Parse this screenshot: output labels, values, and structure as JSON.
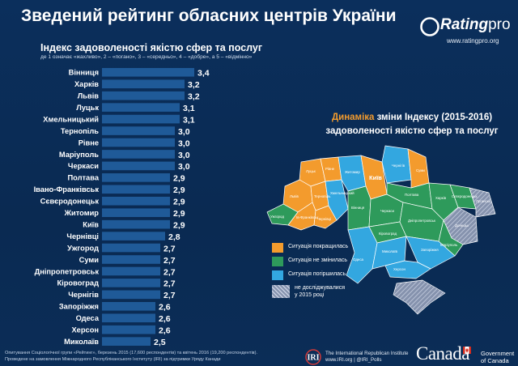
{
  "header": {
    "title": "Зведений рейтинг обласних центрів України"
  },
  "brand": {
    "name_main": "Rating",
    "name_suffix": "pro",
    "url": "www.ratingpro.org"
  },
  "chart_data": {
    "type": "bar",
    "orientation": "horizontal",
    "title": "Індекс задоволеності якістю сфер та послуг",
    "subtitle": "де 1 означає «жахливо», 2 – «погано», 3 – «середньо», 4 – «добре», а 5 – «відмінно»",
    "categories": [
      "Вінниця",
      "Харків",
      "Львів",
      "Луцьк",
      "Хмельницький",
      "Тернопіль",
      "Рівне",
      "Маріуполь",
      "Черкаси",
      "Полтава",
      "Івано-Франківськ",
      "Сєвєродонецьк",
      "Житомир",
      "Київ",
      "Чернівці",
      "Ужгород",
      "Суми",
      "Дніпропетровськ",
      "Кіровоград",
      "Чернігів",
      "Запоріжжя",
      "Одеса",
      "Херсон",
      "Миколаїв"
    ],
    "values": [
      3.4,
      3.2,
      3.2,
      3.1,
      3.1,
      3.0,
      3.0,
      3.0,
      3.0,
      2.9,
      2.9,
      2.9,
      2.9,
      2.9,
      2.8,
      2.7,
      2.7,
      2.7,
      2.7,
      2.7,
      2.6,
      2.6,
      2.6,
      2.5
    ],
    "value_labels": [
      "3,4",
      "3,2",
      "3,2",
      "3,1",
      "3,1",
      "3,0",
      "3,0",
      "3,0",
      "3,0",
      "2,9",
      "2,9",
      "2,9",
      "2,9",
      "2,9",
      "2,8",
      "2,7",
      "2,7",
      "2,7",
      "2,7",
      "2,7",
      "2,6",
      "2,6",
      "2,6",
      "2,5"
    ],
    "xlim": [
      1.5,
      3.4
    ],
    "bar_color": "#1f5a98",
    "label_color": "#ffffff"
  },
  "map": {
    "title_accent": "Динаміка",
    "title_rest": " зміни Індексу (2015-2016)",
    "title_line2": "задоволеності якістю сфер та послуг",
    "colors": {
      "improved": "#f39b2d",
      "unchanged": "#2e9a5b",
      "worsened": "#33a7e0",
      "not_studied": "#9aa6bd"
    },
    "region_labels": {
      "lutsk": "Луцьк",
      "rivne": "Рівне",
      "zhytomyr": "Житомир",
      "chernihiv": "Чернігів",
      "sumy": "Суми",
      "kyiv": "Київ",
      "lviv": "Львів",
      "ternopil": "Тернопіль",
      "khmelnytskyi": "Хмельницький",
      "vinnytsia": "Вінниця",
      "cherkasy": "Черкаси",
      "poltava": "Полтава",
      "kharkiv": "Харків",
      "uzhhorod": "Ужгород",
      "ivano_frankivsk": "Ів-Франківськ",
      "chernivtsi": "Чернівці",
      "kirovohrad": "Кіровоград",
      "dnipro": "Дніпропетровськ",
      "sievierodonetsk": "Сєвєродонецьк",
      "zaporizhzhia": "Запоріжжя",
      "mykolaiv": "Миколаїв",
      "odesa": "Одеса",
      "kherson": "Херсон",
      "mariupol": "Маріуполь",
      "donetsk": "Донецьк",
      "luhansk": "Луганськ"
    }
  },
  "legend": {
    "improved": "Ситуація покращилась",
    "unchanged": "Ситуація не змінилась",
    "worsened": "Ситуація погіршилась",
    "not_studied_line1": "не досліджувалися",
    "not_studied_line2": "у 2015 році"
  },
  "footer": {
    "note_line1": "Опитування Соціологічної групи «Рейтинг», березень 2015 (17,600 респондентів) та квітень 2016 (19,200 респондентів).",
    "note_line2": "Проведене на замовлення Міжнародного Республіканського Інституту (IRI) за підтримки Уряду Канади",
    "iri_logo": "IRI",
    "iri_line1": "The International Republican Institute",
    "iri_line2": "www.IRI.org | @IRI_Polls",
    "canada": "Canada",
    "gov_line1": "Government",
    "gov_line2": "of Canada"
  }
}
